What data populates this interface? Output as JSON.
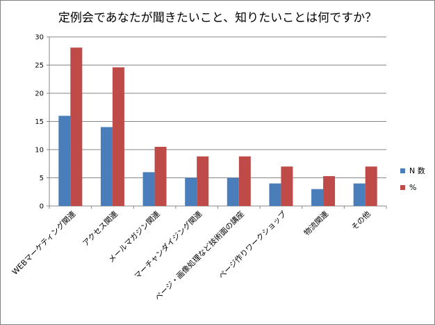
{
  "chart_data": {
    "type": "bar",
    "title": "定例会であなたが聞きたいこと、知りたいことは何ですか？",
    "categories": [
      "WEBマーケティング関連",
      "アクセス関連",
      "メールマガジン関連",
      "マーチャンダイジング関連",
      "ページ・画像処理など技術面の講座",
      "ページ作りワークショップ",
      "物流関連",
      "その他"
    ],
    "series": [
      {
        "name": "N 数",
        "color": "#4a7ebb",
        "values": [
          16,
          14,
          6,
          5,
          5,
          4,
          3,
          4
        ]
      },
      {
        "name": "%",
        "color": "#be4b48",
        "values": [
          28.1,
          24.6,
          10.5,
          8.8,
          8.8,
          7.0,
          5.3,
          7.0
        ]
      }
    ],
    "ylim": [
      0,
      30
    ],
    "yticks": [
      "0",
      "5",
      "10",
      "15",
      "20",
      "25",
      "30"
    ],
    "grid": true,
    "legend_position": "right"
  }
}
